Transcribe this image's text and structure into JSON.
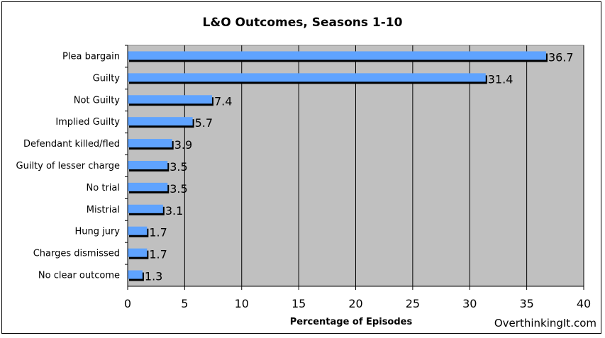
{
  "chart_data": {
    "type": "bar",
    "orientation": "horizontal",
    "title": "L&O Outcomes, Seasons 1-10",
    "xlabel": "Percentage of Episodes",
    "ylabel": "",
    "categories": [
      "Plea bargain",
      "Guilty",
      "Not Guilty",
      "Implied Guilty",
      "Defendant killed/fled",
      "Guilty of lesser charge",
      "No trial",
      "Mistrial",
      "Hung jury",
      "Charges dismissed",
      "No clear outcome"
    ],
    "values": [
      36.7,
      31.4,
      7.4,
      5.7,
      3.9,
      3.5,
      3.5,
      3.1,
      1.7,
      1.7,
      1.3
    ],
    "value_labels": [
      "36.7",
      "31.4",
      "7.4",
      "5.7",
      "3.9",
      "3.5",
      "3.5",
      "3.1",
      "1.7",
      "1.7",
      "1.3"
    ],
    "xlim": [
      0,
      40
    ],
    "xticks": [
      0,
      5,
      10,
      15,
      20,
      25,
      30,
      35,
      40
    ],
    "grid": true,
    "legend": "none",
    "colors": {
      "bar": "#5fa3ff",
      "plot_bg": "#c0c0c0",
      "shadow": "#000000",
      "grid": "#000000"
    }
  },
  "source": "OverthinkingIt.com"
}
